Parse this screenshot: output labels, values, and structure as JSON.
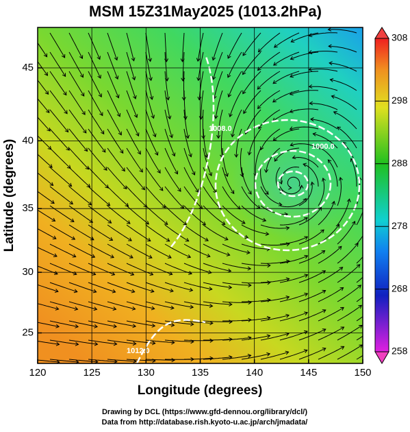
{
  "chart_data": {
    "type": "map",
    "title": "MSM 15Z31May2025 (1013.2hPa)",
    "x_label": "Longitude (degrees)",
    "y_label": "Latitude  (degrees)",
    "projection": "mercator",
    "xlim": [
      120,
      150
    ],
    "ylim": [
      22.4,
      47.6
    ],
    "xticks": [
      120,
      125,
      130,
      135,
      140,
      145,
      150
    ],
    "yticks": [
      25,
      30,
      35,
      40,
      45
    ],
    "grid": true,
    "colorbar": {
      "lim": [
        258,
        308
      ],
      "ticks": [
        258,
        268,
        278,
        288,
        298,
        308
      ]
    },
    "annotations": [
      "1000.0",
      "1008.0",
      "1012.0"
    ],
    "footer": [
      "Drawing by DCL (https://www.gfd-dennou.org/library/dcl/)",
      "Data from http://database.rish.kyoto-u.ac.jp/arch/jmadata/"
    ]
  }
}
